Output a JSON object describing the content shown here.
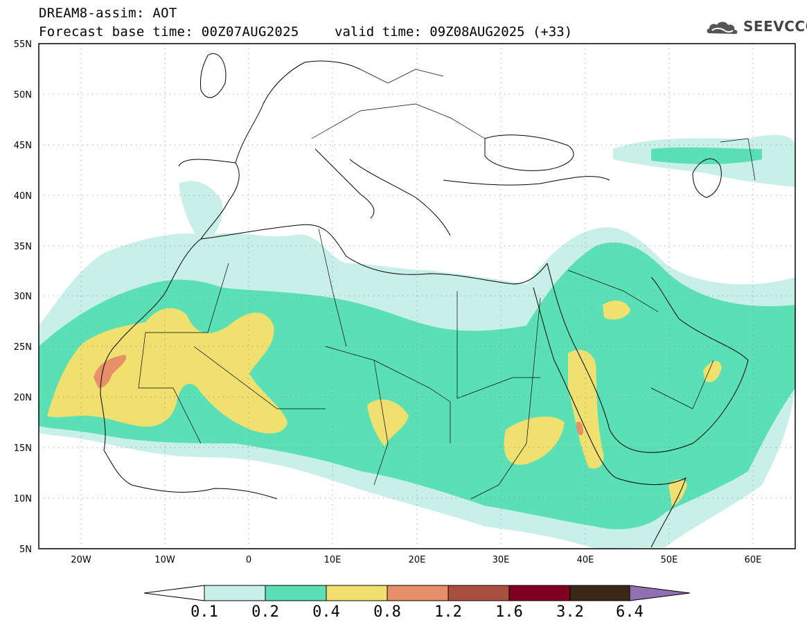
{
  "header": {
    "title_line1": "DREAM8-assim: AOT",
    "title_line2": "Forecast base time: 00Z07AUG2025",
    "valid_time": "valid time: 09Z08AUG2025 (+33)",
    "logo_text": "SEEVCCC"
  },
  "map": {
    "lon_range": [
      -25,
      65
    ],
    "lat_range": [
      5,
      55
    ],
    "lat_ticks": [
      "5N",
      "10N",
      "15N",
      "20N",
      "25N",
      "30N",
      "35N",
      "40N",
      "45N",
      "50N",
      "55N"
    ],
    "lon_ticks": [
      "20W",
      "10W",
      "0",
      "10E",
      "20E",
      "30E",
      "40E",
      "50E",
      "60E"
    ],
    "grid": true
  },
  "colorbar": {
    "labels": [
      "0.1",
      "0.2",
      "0.4",
      "0.8",
      "1.2",
      "1.6",
      "3.2",
      "6.4"
    ],
    "colors": {
      "lt01": "#ffffff",
      "c1": "#c8f0e8",
      "c2": "#5ae0b4",
      "c3": "#f0e070",
      "c4": "#e8906a",
      "c5": "#a85040",
      "c6": "#800020",
      "c7": "#3a2818",
      "gt64": "#9070b0"
    }
  }
}
